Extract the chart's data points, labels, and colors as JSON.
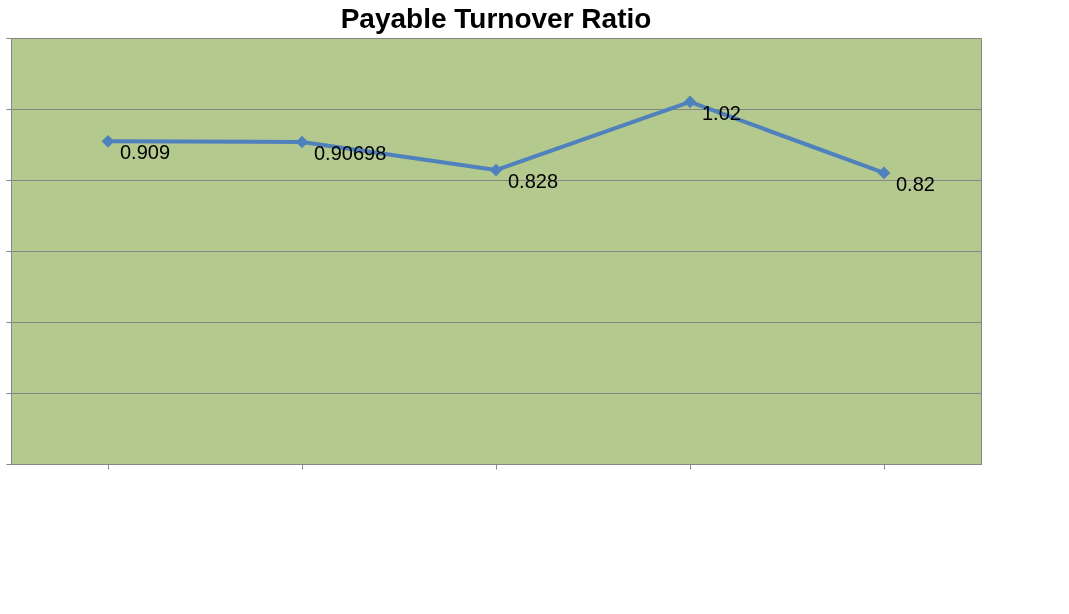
{
  "chart_data": {
    "type": "line",
    "title": "Payable Turnover Ratio",
    "categories": [
      null,
      null,
      null,
      null,
      null
    ],
    "series": [
      {
        "color": "#4f81bd",
        "values": [
          0.909,
          0.90698,
          0.828,
          1.02,
          0.82
        ]
      }
    ],
    "data_labels": true,
    "marker": "diamond",
    "line_style": "solid",
    "grid": "y",
    "tick_labels": false,
    "ylim": [
      0,
      1.2
    ],
    "yticks": [
      {
        "value": 0,
        "label": null
      },
      {
        "value": 0.2,
        "label": null
      },
      {
        "value": 0.4,
        "label": null
      },
      {
        "value": 0.6,
        "label": null
      },
      {
        "value": 0.8,
        "label": null
      },
      {
        "value": 1.0,
        "label": null
      },
      {
        "value": 1.2,
        "label": null
      }
    ]
  }
}
